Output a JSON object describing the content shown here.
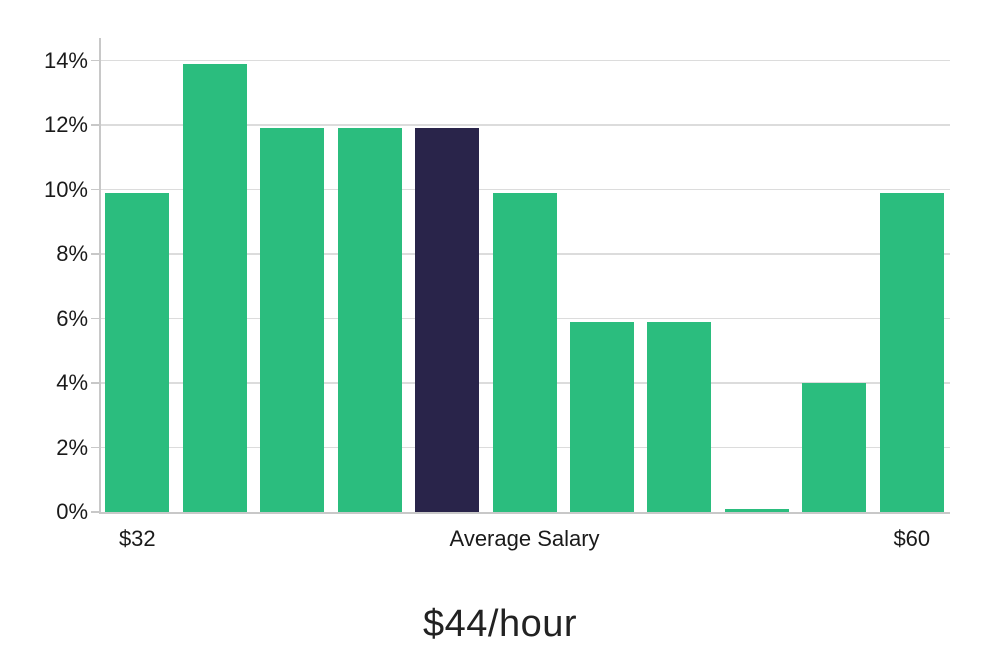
{
  "title": {
    "text": "$44/hour"
  },
  "chart_data": {
    "type": "bar",
    "values": [
      9.9,
      13.9,
      11.9,
      11.9,
      11.9,
      9.9,
      5.9,
      5.9,
      0.1,
      4.0,
      9.9
    ],
    "highlight_index": 4,
    "y_ticks": [
      {
        "label": "0%",
        "value": 0
      },
      {
        "label": "2%",
        "value": 2
      },
      {
        "label": "4%",
        "value": 4
      },
      {
        "label": "6%",
        "value": 6
      },
      {
        "label": "8%",
        "value": 8
      },
      {
        "label": "10%",
        "value": 10
      },
      {
        "label": "12%",
        "value": 12
      },
      {
        "label": "14%",
        "value": 14
      }
    ],
    "x_tick_labels": [
      {
        "label": "$32",
        "bar_index": 0
      },
      {
        "label": "Average Salary",
        "bar_index": 5
      },
      {
        "label": "$60",
        "bar_index": 10
      }
    ],
    "ylim": [
      0,
      14.7
    ],
    "grid": true,
    "legend": "none",
    "colors": {
      "bar": "#2bbd7e",
      "highlight": "#29244a",
      "gridline": "#dcdcdc",
      "axis": "#c8c8c8",
      "tick_text": "#1a1a1a",
      "title_text": "#222222",
      "background": "#ffffff"
    }
  }
}
